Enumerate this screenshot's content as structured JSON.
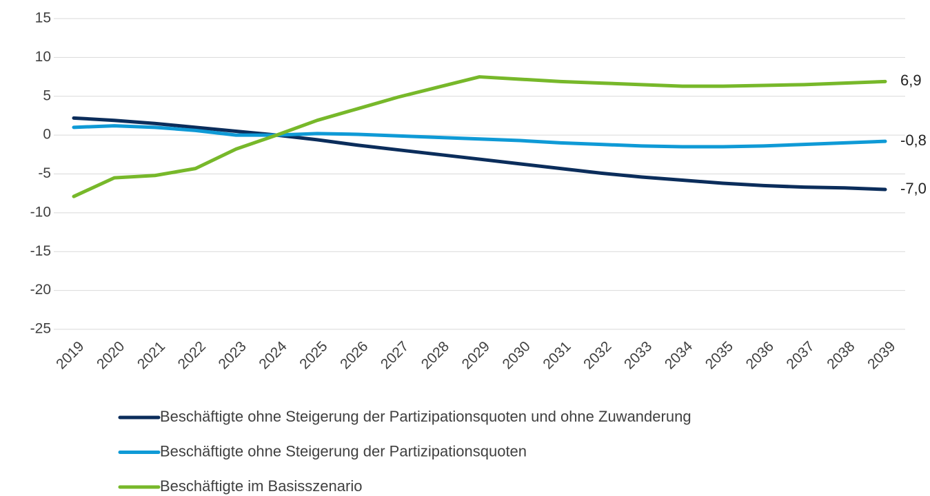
{
  "chart_data": {
    "type": "line",
    "categories": [
      "2019",
      "2020",
      "2021",
      "2022",
      "2023",
      "2024",
      "2025",
      "2026",
      "2027",
      "2028",
      "2029",
      "2030",
      "2031",
      "2032",
      "2033",
      "2034",
      "2035",
      "2036",
      "2037",
      "2038",
      "2039"
    ],
    "series": [
      {
        "name": "Beschäftigte ohne Steigerung der Partizipationsquoten und ohne  Zuwanderung",
        "color": "#0b2d5b",
        "values": [
          2.2,
          1.9,
          1.5,
          1.0,
          0.5,
          0.0,
          -0.6,
          -1.3,
          -1.9,
          -2.5,
          -3.1,
          -3.7,
          -4.3,
          -4.9,
          -5.4,
          -5.8,
          -6.2,
          -6.5,
          -6.7,
          -6.8,
          -7.0
        ],
        "value_labels": [
          null,
          null,
          null,
          null,
          null,
          null,
          null,
          null,
          null,
          null,
          null,
          null,
          null,
          null,
          null,
          null,
          null,
          null,
          null,
          null,
          "-7,0"
        ]
      },
      {
        "name": "Beschäftigte ohne Steigerung der Partizipationsquoten",
        "color": "#0f9ad6",
        "values": [
          1.0,
          1.2,
          1.0,
          0.6,
          0.0,
          0.0,
          0.2,
          0.1,
          -0.1,
          -0.3,
          -0.5,
          -0.7,
          -1.0,
          -1.2,
          -1.4,
          -1.5,
          -1.5,
          -1.4,
          -1.2,
          -1.0,
          -0.8
        ],
        "value_labels": [
          null,
          null,
          null,
          null,
          null,
          null,
          null,
          null,
          null,
          null,
          null,
          null,
          null,
          null,
          null,
          null,
          null,
          null,
          null,
          null,
          "-0,8"
        ]
      },
      {
        "name": "Beschäftigte im Basisszenario",
        "color": "#77b82a",
        "values": [
          -7.9,
          -5.5,
          -5.2,
          -4.3,
          -1.8,
          0.0,
          1.9,
          3.4,
          4.9,
          6.2,
          7.5,
          7.2,
          6.9,
          6.7,
          6.5,
          6.3,
          6.3,
          6.4,
          6.5,
          6.7,
          6.9
        ],
        "value_labels": [
          null,
          null,
          null,
          null,
          null,
          null,
          null,
          null,
          null,
          null,
          null,
          null,
          null,
          null,
          null,
          null,
          null,
          null,
          null,
          null,
          "6,9"
        ]
      }
    ],
    "ylim": [
      -25,
      15
    ],
    "yticks": [
      -25,
      -20,
      -15,
      -10,
      -5,
      0,
      5,
      10,
      15
    ],
    "grid": true
  }
}
